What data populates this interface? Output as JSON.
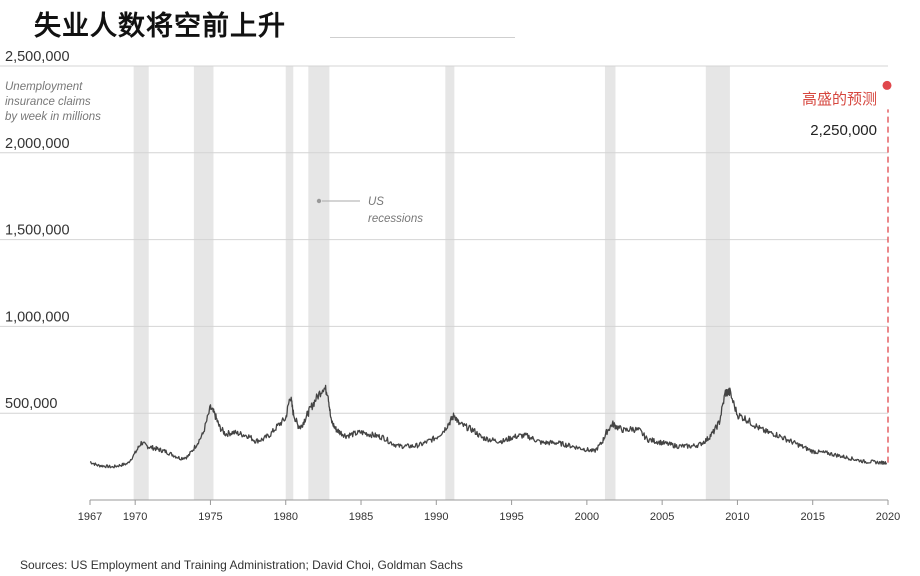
{
  "header": {
    "title": "失业人数将空前上升"
  },
  "footer": {
    "source": "Sources: US Employment and Training Administration; David Choi, Goldman Sachs"
  },
  "chart_data": {
    "type": "line",
    "ylabel": "Unemployment insurance claims by week in millions",
    "ylabel_lines": [
      "Unemployment",
      "insurance claims",
      "by week in millions"
    ],
    "ylim": [
      0,
      2500000
    ],
    "yticks": [
      500000,
      1000000,
      1500000,
      2000000,
      2500000
    ],
    "ytick_labels": [
      "500,000",
      "1,000,000",
      "1,500,000",
      "2,000,000",
      "2,500,000"
    ],
    "xlim": [
      1967,
      2020
    ],
    "xticks": [
      1967,
      1970,
      1975,
      1980,
      1985,
      1990,
      1995,
      2000,
      2005,
      2010,
      2015,
      2020
    ],
    "xtick_labels": [
      "1967",
      "1970",
      "1975",
      "1980",
      "1985",
      "1990",
      "1995",
      "2000",
      "2005",
      "2010",
      "2015",
      "2020"
    ],
    "grid": "horizontal",
    "recessions": [
      [
        1969.9,
        1970.9
      ],
      [
        1973.9,
        1975.2
      ],
      [
        1980.0,
        1980.5
      ],
      [
        1981.5,
        1982.9
      ],
      [
        1990.6,
        1991.2
      ],
      [
        2001.2,
        2001.9
      ],
      [
        2007.9,
        2009.5
      ]
    ],
    "recession_label_lines": [
      "US",
      "recessions"
    ],
    "series": [
      {
        "color": "#444444",
        "x": [
          1967.0,
          1967.5,
          1968.0,
          1968.5,
          1969.0,
          1969.5,
          1970.0,
          1970.4,
          1970.8,
          1971.2,
          1971.6,
          1972.0,
          1972.5,
          1973.0,
          1973.5,
          1974.0,
          1974.5,
          1975.0,
          1975.3,
          1975.6,
          1976.0,
          1976.5,
          1977.0,
          1977.5,
          1978.0,
          1978.5,
          1979.0,
          1979.5,
          1980.0,
          1980.3,
          1980.5,
          1980.8,
          1981.0,
          1981.3,
          1981.6,
          1982.0,
          1982.5,
          1982.8,
          1983.0,
          1983.3,
          1983.6,
          1984.0,
          1984.5,
          1985.0,
          1985.5,
          1986.0,
          1986.5,
          1987.0,
          1987.5,
          1988.0,
          1988.5,
          1989.0,
          1989.5,
          1990.0,
          1990.5,
          1990.9,
          1991.2,
          1991.5,
          1992.0,
          1992.5,
          1993.0,
          1993.5,
          1994.0,
          1994.5,
          1995.0,
          1995.5,
          1996.0,
          1996.5,
          1997.0,
          1997.5,
          1998.0,
          1998.5,
          1999.0,
          1999.5,
          2000.0,
          2000.5,
          2001.0,
          2001.3,
          2001.7,
          2002.0,
          2002.5,
          2003.0,
          2003.5,
          2004.0,
          2004.5,
          2005.0,
          2005.5,
          2006.0,
          2006.5,
          2007.0,
          2007.5,
          2008.0,
          2008.4,
          2008.8,
          2009.2,
          2009.5,
          2010.0,
          2010.5,
          2011.0,
          2011.5,
          2012.0,
          2012.5,
          2013.0,
          2013.5,
          2014.0,
          2014.5,
          2015.0,
          2015.5,
          2016.0,
          2016.5,
          2017.0,
          2017.5,
          2018.0,
          2018.5,
          2019.0,
          2019.5,
          2019.9
        ],
        "values": [
          220000,
          200000,
          195000,
          190000,
          200000,
          210000,
          270000,
          330000,
          310000,
          300000,
          290000,
          280000,
          260000,
          240000,
          250000,
          310000,
          380000,
          530000,
          490000,
          420000,
          380000,
          390000,
          380000,
          370000,
          340000,
          350000,
          380000,
          430000,
          470000,
          600000,
          500000,
          430000,
          420000,
          470000,
          520000,
          580000,
          650000,
          620000,
          460000,
          410000,
          390000,
          370000,
          380000,
          390000,
          380000,
          370000,
          360000,
          330000,
          310000,
          310000,
          310000,
          320000,
          340000,
          360000,
          400000,
          450000,
          490000,
          440000,
          420000,
          400000,
          360000,
          350000,
          340000,
          340000,
          360000,
          370000,
          370000,
          350000,
          330000,
          330000,
          330000,
          320000,
          310000,
          300000,
          290000,
          280000,
          330000,
          390000,
          440000,
          420000,
          400000,
          410000,
          400000,
          350000,
          340000,
          330000,
          320000,
          310000,
          310000,
          310000,
          320000,
          350000,
          390000,
          450000,
          620000,
          620000,
          490000,
          470000,
          440000,
          410000,
          390000,
          380000,
          360000,
          340000,
          320000,
          300000,
          280000,
          275000,
          270000,
          260000,
          250000,
          240000,
          230000,
          220000,
          220000,
          215000,
          215000
        ]
      }
    ],
    "forecast": {
      "x": 2020.0,
      "value": 2250000,
      "label": "高盛的预测",
      "value_label": "2,250,000",
      "color": "#e0474c"
    }
  }
}
